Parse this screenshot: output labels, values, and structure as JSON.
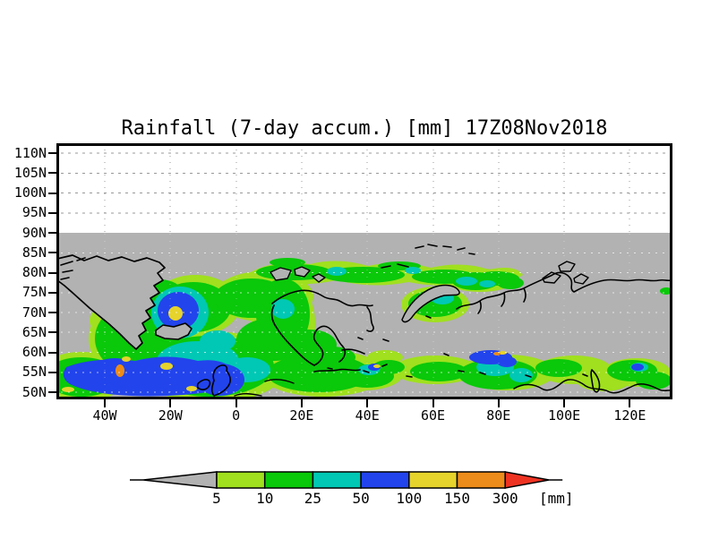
{
  "title": "Rainfall (7-day accum.) [mm] 17Z08Nov2018",
  "y_axis": {
    "ticks": [
      "110N",
      "105N",
      "100N",
      "95N",
      "90N",
      "85N",
      "80N",
      "75N",
      "70N",
      "65N",
      "60N",
      "55N",
      "50N"
    ]
  },
  "x_axis": {
    "ticks": [
      "40W",
      "20W",
      "0",
      "20E",
      "40E",
      "60E",
      "80E",
      "100E",
      "120E"
    ]
  },
  "legend": {
    "thresholds": [
      "5",
      "10",
      "25",
      "50",
      "100",
      "150",
      "300"
    ],
    "band_colors": [
      "#a0e01e",
      "#0ac80a",
      "#00c8b4",
      "#2244ec",
      "#e6d32c",
      "#ec8c1a"
    ],
    "below_min_color": "#b2b2b2",
    "above_max_color": "#ee3322",
    "unit": "[mm]"
  },
  "colors": {
    "no_data_gray": "#b2b2b2",
    "gridline_gray": "#999999",
    "coastline": "#000000",
    "frame": "#000000"
  },
  "chart_data": {
    "type": "heatmap",
    "title": "Rainfall (7-day accum.) [mm] 17Z08Nov2018",
    "variable": "7-day accumulated rainfall",
    "unit": "[mm]",
    "valid_time": "17Z08Nov2018",
    "x_tick_labels": [
      "40W",
      "20W",
      "0",
      "20E",
      "40E",
      "60E",
      "80E",
      "100E",
      "120E"
    ],
    "y_tick_labels": [
      "110N",
      "105N",
      "100N",
      "95N",
      "90N",
      "85N",
      "80N",
      "75N",
      "70N",
      "65N",
      "60N",
      "55N",
      "50N"
    ],
    "colorbar_thresholds": [
      5,
      10,
      25,
      50,
      100,
      150,
      300
    ],
    "colorbar_band_colors": [
      "#a0e01e",
      "#0ac80a",
      "#00c8b4",
      "#2244ec",
      "#e6d32c",
      "#ec8c1a"
    ],
    "colorbar_below_min": "#b2b2b2",
    "colorbar_above_max": "#ee3322",
    "grid": true,
    "legend_position": "bottom"
  }
}
